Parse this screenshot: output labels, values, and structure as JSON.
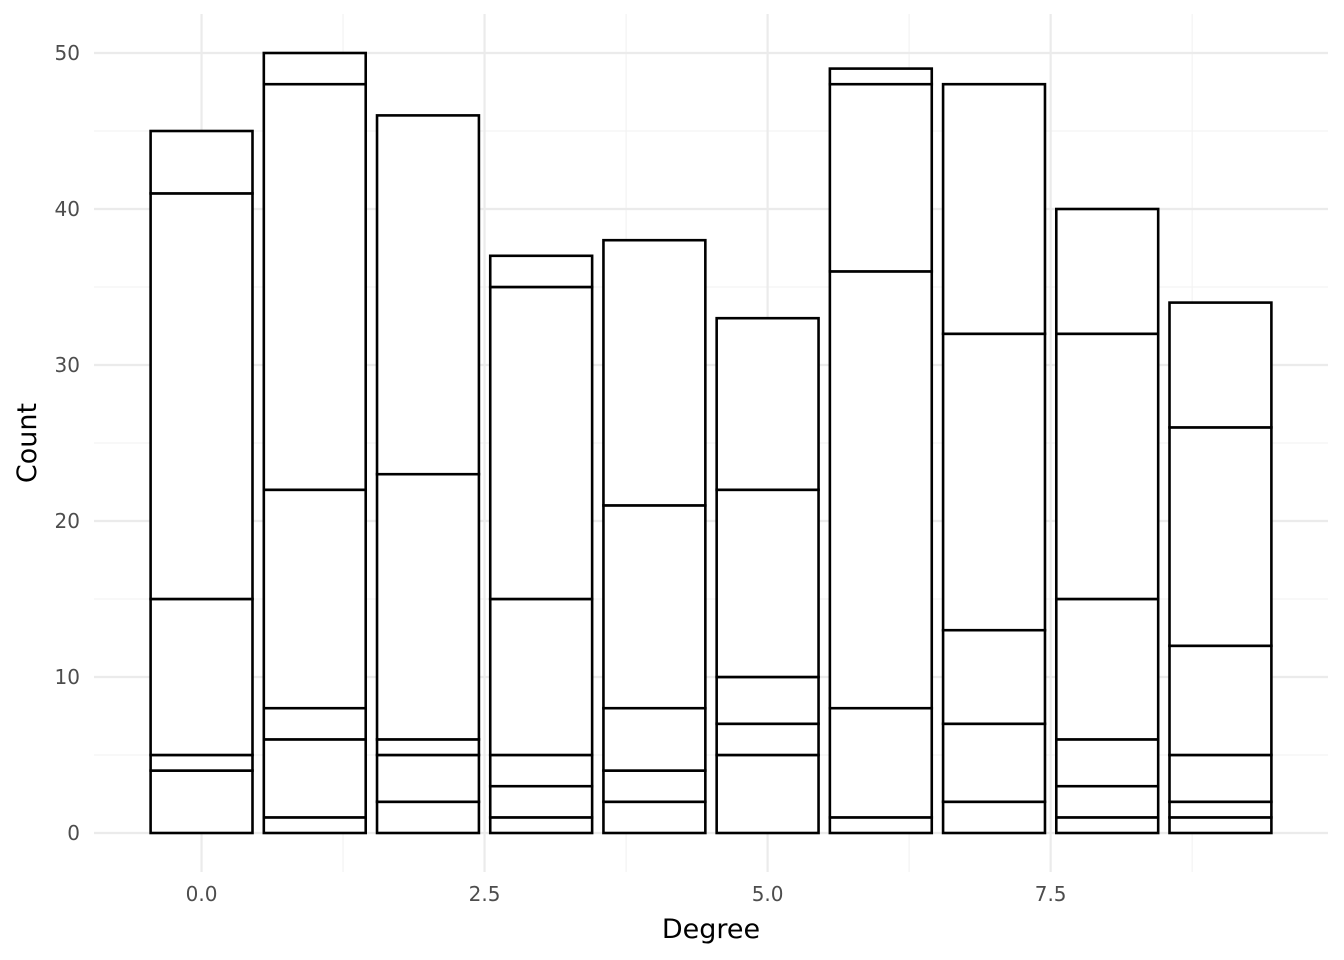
{
  "chart_data": {
    "type": "bar",
    "stacked": true,
    "xlabel": "Degree",
    "ylabel": "Count",
    "xlim": [
      -0.95,
      9.95
    ],
    "ylim": [
      -2.5,
      52.5
    ],
    "x_ticks": [
      0.0,
      2.5,
      5.0,
      7.5
    ],
    "x_tick_labels": [
      "0.0",
      "2.5",
      "5.0",
      "7.5"
    ],
    "y_ticks": [
      0,
      10,
      20,
      30,
      40,
      50
    ],
    "y_tick_labels": [
      "0",
      "10",
      "20",
      "30",
      "40",
      "50"
    ],
    "grid": true,
    "legend": "none",
    "bar_fill": "#ffffff",
    "bar_outline": "#000000",
    "bars": [
      {
        "x": 0,
        "total": 45,
        "boundaries": [
          4,
          5,
          15,
          41
        ]
      },
      {
        "x": 1,
        "total": 50,
        "boundaries": [
          1,
          6,
          8,
          22,
          48
        ]
      },
      {
        "x": 2,
        "total": 46,
        "boundaries": [
          2,
          5,
          6,
          23
        ]
      },
      {
        "x": 3,
        "total": 37,
        "boundaries": [
          1,
          3,
          5,
          15,
          35
        ]
      },
      {
        "x": 4,
        "total": 38,
        "boundaries": [
          2,
          4,
          8,
          21
        ]
      },
      {
        "x": 5,
        "total": 33,
        "boundaries": [
          5,
          7,
          10,
          22
        ]
      },
      {
        "x": 6,
        "total": 49,
        "boundaries": [
          1,
          8,
          36,
          48
        ]
      },
      {
        "x": 7,
        "total": 48,
        "boundaries": [
          2,
          7,
          13,
          32
        ]
      },
      {
        "x": 8,
        "total": 40,
        "boundaries": [
          1,
          3,
          6,
          15,
          32
        ]
      },
      {
        "x": 9,
        "total": 34,
        "boundaries": [
          1,
          2,
          5,
          12,
          26
        ]
      }
    ]
  }
}
